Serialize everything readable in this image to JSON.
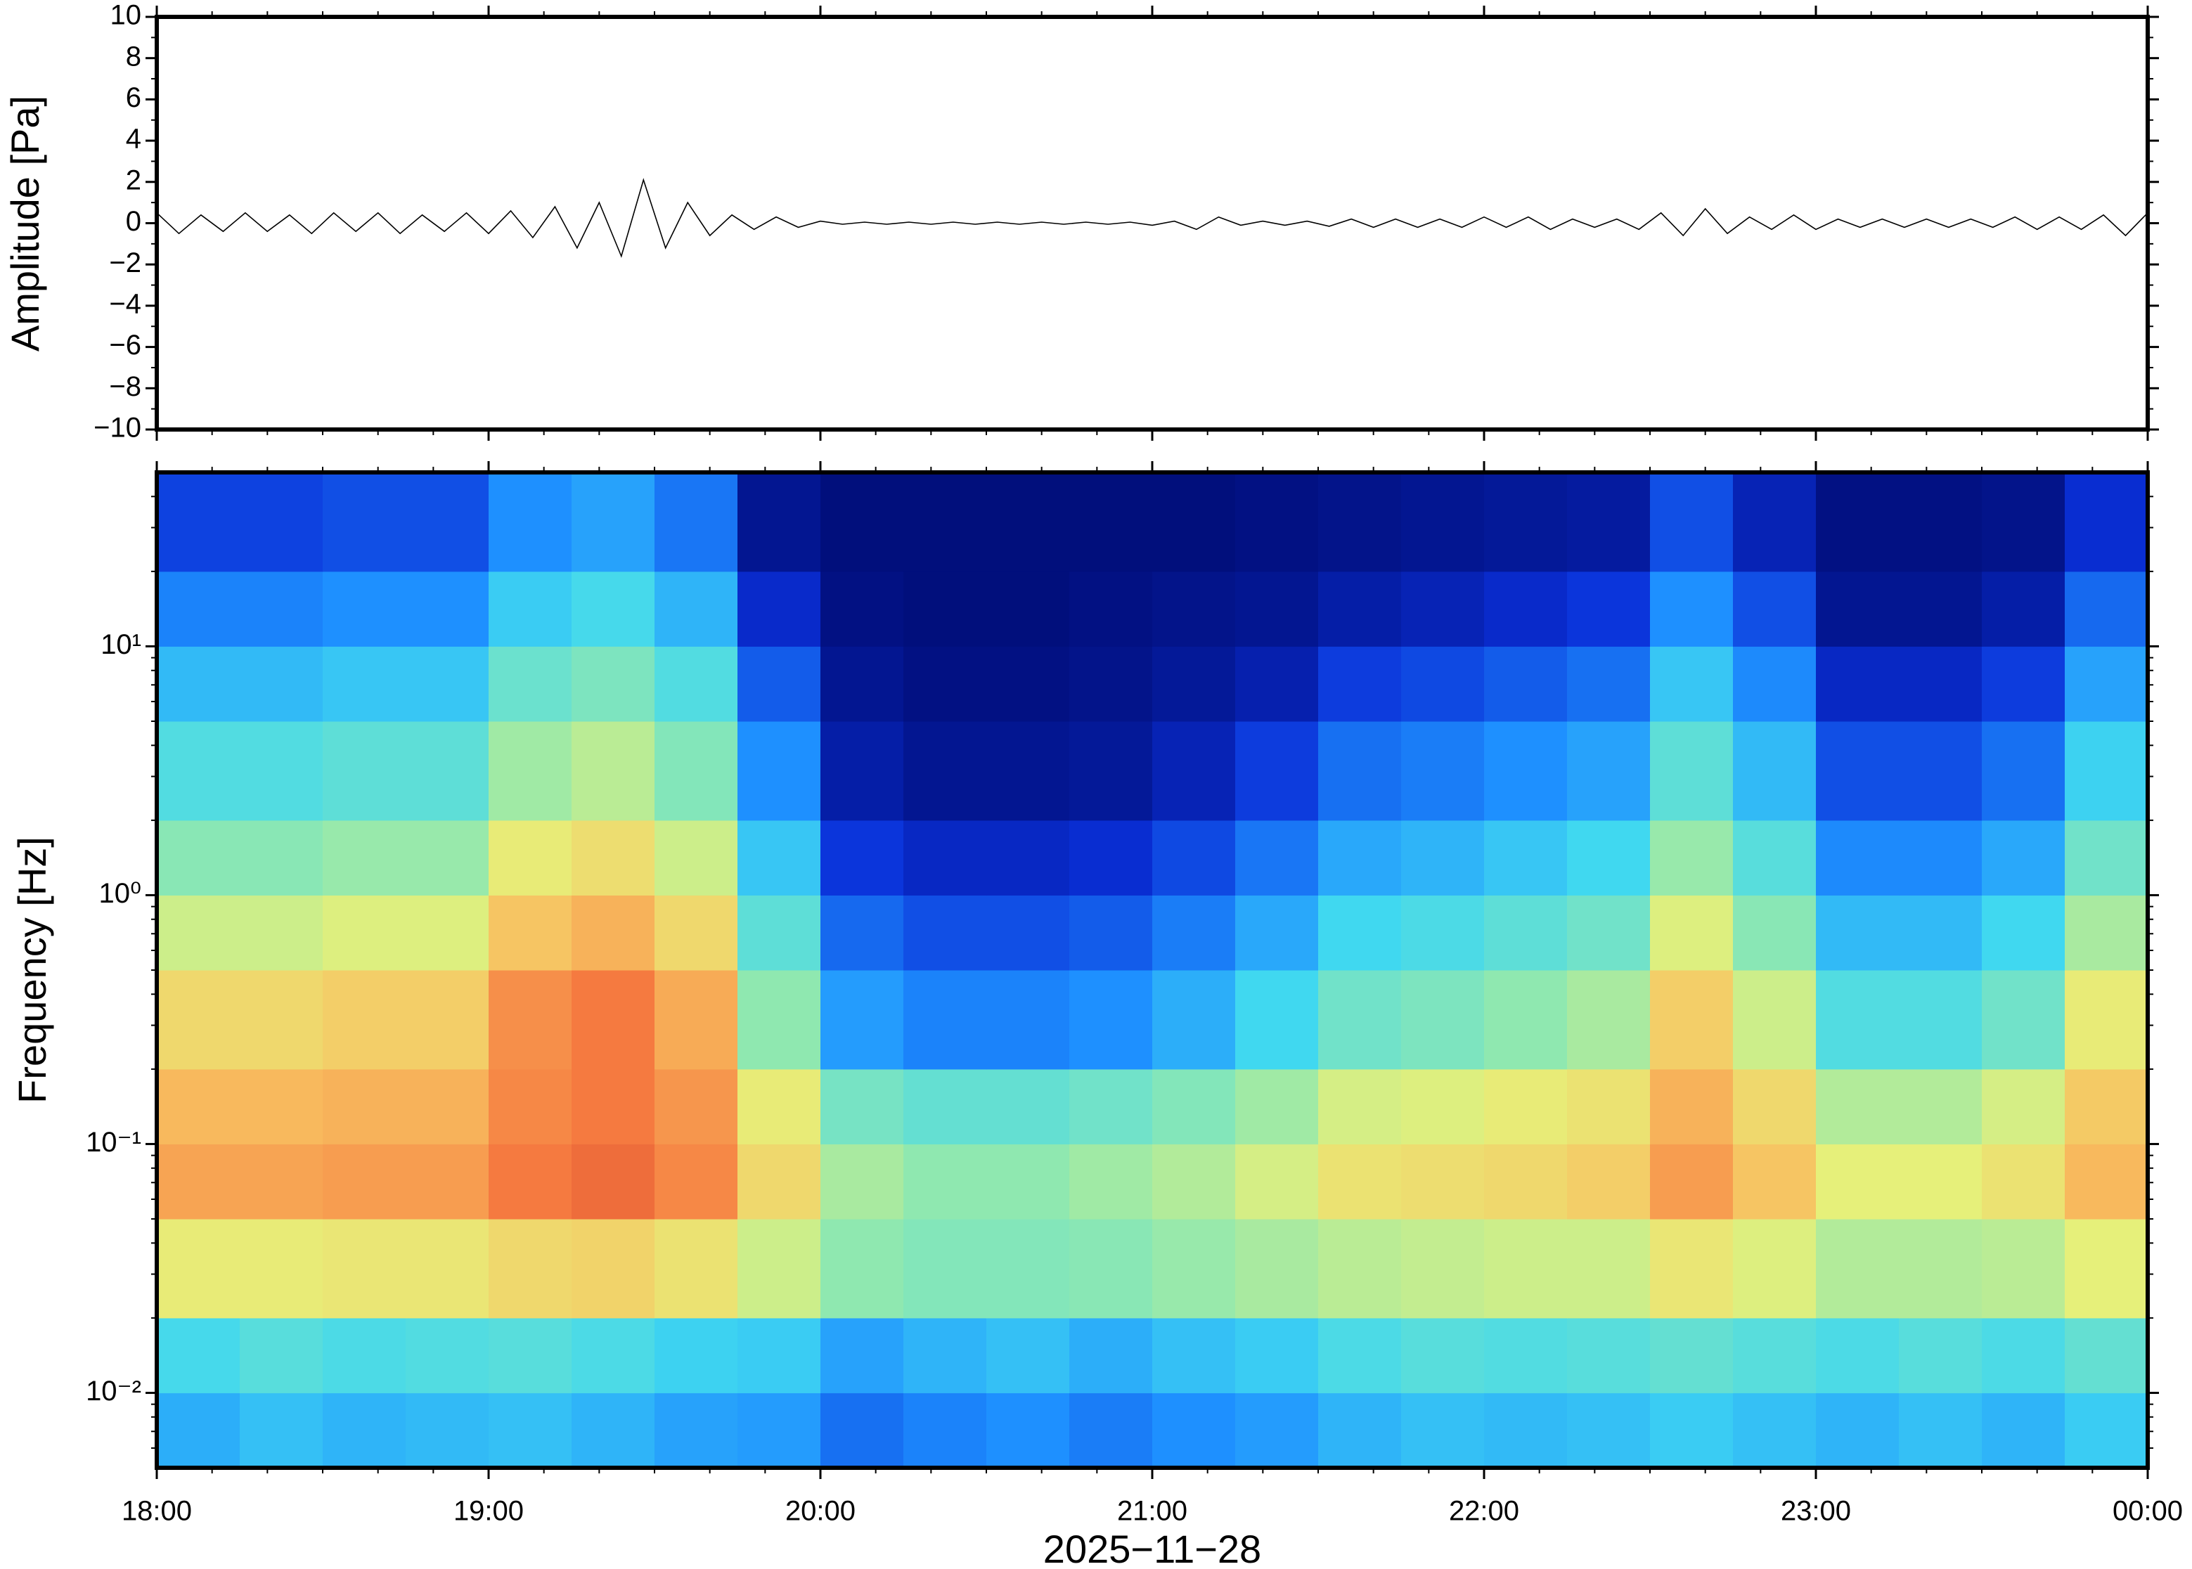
{
  "chart_data": [
    {
      "type": "line",
      "ylabel": "Amplitude [Pa]",
      "color": "#000000",
      "x": [
        "18:00",
        "18:04",
        "18:08",
        "18:12",
        "18:16",
        "18:20",
        "18:24",
        "18:28",
        "18:32",
        "18:36",
        "18:40",
        "18:44",
        "18:48",
        "18:52",
        "18:56",
        "19:00",
        "19:04",
        "19:08",
        "19:12",
        "19:16",
        "19:20",
        "19:24",
        "19:28",
        "19:32",
        "19:36",
        "19:40",
        "19:44",
        "19:48",
        "19:52",
        "19:56",
        "20:00",
        "20:04",
        "20:08",
        "20:12",
        "20:16",
        "20:20",
        "20:24",
        "20:28",
        "20:32",
        "20:36",
        "20:40",
        "20:44",
        "20:48",
        "20:52",
        "20:56",
        "21:00",
        "21:04",
        "21:08",
        "21:12",
        "21:16",
        "21:20",
        "21:24",
        "21:28",
        "21:32",
        "21:36",
        "21:40",
        "21:44",
        "21:48",
        "21:52",
        "21:56",
        "22:00",
        "22:04",
        "22:08",
        "22:12",
        "22:16",
        "22:20",
        "22:24",
        "22:28",
        "22:32",
        "22:36",
        "22:40",
        "22:44",
        "22:48",
        "22:52",
        "22:56",
        "23:00",
        "23:04",
        "23:08",
        "23:12",
        "23:16",
        "23:20",
        "23:24",
        "23:28",
        "23:32",
        "23:36",
        "23:40",
        "23:44",
        "23:48",
        "23:52",
        "23:56",
        "00:00"
      ],
      "values": [
        0.5,
        -0.5,
        0.4,
        -0.4,
        0.5,
        -0.4,
        0.4,
        -0.5,
        0.5,
        -0.4,
        0.5,
        -0.5,
        0.4,
        -0.4,
        0.5,
        -0.5,
        0.6,
        -0.7,
        0.8,
        -1.2,
        1.0,
        -1.6,
        2.1,
        -1.2,
        1.0,
        -0.6,
        0.4,
        -0.3,
        0.3,
        -0.2,
        0.1,
        -0.05,
        0.05,
        -0.05,
        0.05,
        -0.05,
        0.05,
        -0.05,
        0.05,
        -0.05,
        0.05,
        -0.05,
        0.05,
        -0.05,
        0.05,
        -0.1,
        0.1,
        -0.3,
        0.3,
        -0.1,
        0.1,
        -0.1,
        0.1,
        -0.15,
        0.2,
        -0.2,
        0.2,
        -0.2,
        0.2,
        -0.2,
        0.3,
        -0.2,
        0.3,
        -0.3,
        0.2,
        -0.2,
        0.2,
        -0.3,
        0.5,
        -0.6,
        0.7,
        -0.5,
        0.3,
        -0.3,
        0.4,
        -0.3,
        0.2,
        -0.2,
        0.2,
        -0.2,
        0.2,
        -0.2,
        0.2,
        -0.2,
        0.3,
        -0.3,
        0.3,
        -0.3,
        0.4,
        -0.6,
        0.5
      ],
      "xlim": [
        "18:00",
        "00:00"
      ],
      "ylim": [
        -10,
        10
      ],
      "yticks": [
        {
          "value": -10,
          "label": "−10"
        },
        {
          "value": -8,
          "label": "−8"
        },
        {
          "value": -6,
          "label": "−6"
        },
        {
          "value": -4,
          "label": "−4"
        },
        {
          "value": -2,
          "label": "−2"
        },
        0,
        2,
        4,
        6,
        8,
        10
      ]
    },
    {
      "type": "heatmap",
      "ylabel": "Frequency [Hz]",
      "xlabel": "2025−11−28",
      "log": true,
      "bins": [
        "18:00",
        "18:15",
        "18:30",
        "18:45",
        "19:00",
        "19:15",
        "19:30",
        "19:45",
        "20:00",
        "20:15",
        "20:30",
        "20:45",
        "21:00",
        "21:15",
        "21:30",
        "21:45",
        "22:00",
        "22:15",
        "22:30",
        "22:45",
        "23:00",
        "23:15",
        "23:30",
        "23:45",
        "00:00"
      ],
      "ybins": [
        0.005,
        0.01,
        0.02,
        0.05,
        0.1,
        0.2,
        0.5,
        1,
        2,
        5,
        10,
        20,
        50
      ],
      "values": [
        [
          0.35,
          0.38,
          0.36,
          0.37,
          0.38,
          0.36,
          0.33,
          0.32,
          0.25,
          0.28,
          0.3,
          0.27,
          0.3,
          0.32,
          0.36,
          0.38,
          0.37,
          0.38,
          0.4,
          0.38,
          0.36,
          0.38,
          0.36,
          0.4
        ],
        [
          0.43,
          0.46,
          0.44,
          0.45,
          0.46,
          0.44,
          0.41,
          0.4,
          0.33,
          0.36,
          0.38,
          0.35,
          0.38,
          0.4,
          0.44,
          0.46,
          0.45,
          0.46,
          0.48,
          0.46,
          0.44,
          0.46,
          0.44,
          0.48
        ],
        [
          0.66,
          0.66,
          0.67,
          0.67,
          0.7,
          0.71,
          0.68,
          0.62,
          0.55,
          0.53,
          0.53,
          0.54,
          0.56,
          0.58,
          0.6,
          0.61,
          0.62,
          0.62,
          0.67,
          0.64,
          0.59,
          0.59,
          0.6,
          0.65
        ],
        [
          0.79,
          0.79,
          0.8,
          0.8,
          0.85,
          0.87,
          0.83,
          0.7,
          0.58,
          0.55,
          0.55,
          0.57,
          0.59,
          0.63,
          0.68,
          0.69,
          0.7,
          0.72,
          0.8,
          0.74,
          0.65,
          0.65,
          0.68,
          0.76
        ],
        [
          0.76,
          0.76,
          0.77,
          0.77,
          0.83,
          0.85,
          0.81,
          0.66,
          0.51,
          0.48,
          0.48,
          0.5,
          0.53,
          0.57,
          0.63,
          0.64,
          0.66,
          0.68,
          0.77,
          0.7,
          0.59,
          0.59,
          0.63,
          0.73
        ],
        [
          0.7,
          0.7,
          0.72,
          0.72,
          0.82,
          0.85,
          0.78,
          0.55,
          0.32,
          0.28,
          0.28,
          0.3,
          0.35,
          0.42,
          0.5,
          0.52,
          0.55,
          0.58,
          0.72,
          0.62,
          0.45,
          0.45,
          0.5,
          0.66
        ],
        [
          0.62,
          0.62,
          0.64,
          0.64,
          0.74,
          0.77,
          0.7,
          0.47,
          0.24,
          0.2,
          0.2,
          0.22,
          0.27,
          0.34,
          0.42,
          0.44,
          0.47,
          0.5,
          0.64,
          0.54,
          0.37,
          0.37,
          0.42,
          0.58
        ],
        [
          0.54,
          0.54,
          0.56,
          0.56,
          0.66,
          0.69,
          0.62,
          0.39,
          0.16,
          0.12,
          0.12,
          0.14,
          0.19,
          0.26,
          0.34,
          0.36,
          0.39,
          0.42,
          0.56,
          0.46,
          0.29,
          0.29,
          0.34,
          0.5
        ],
        [
          0.45,
          0.45,
          0.47,
          0.47,
          0.57,
          0.6,
          0.53,
          0.3,
          0.08,
          0.05,
          0.05,
          0.06,
          0.1,
          0.17,
          0.25,
          0.27,
          0.3,
          0.33,
          0.47,
          0.37,
          0.2,
          0.2,
          0.25,
          0.41
        ],
        [
          0.37,
          0.37,
          0.39,
          0.39,
          0.49,
          0.52,
          0.45,
          0.22,
          0.05,
          0.03,
          0.03,
          0.04,
          0.06,
          0.09,
          0.17,
          0.19,
          0.22,
          0.25,
          0.39,
          0.29,
          0.12,
          0.12,
          0.17,
          0.33
        ],
        [
          0.28,
          0.28,
          0.3,
          0.3,
          0.4,
          0.43,
          0.36,
          0.13,
          0.03,
          0.02,
          0.02,
          0.03,
          0.04,
          0.05,
          0.08,
          0.1,
          0.13,
          0.16,
          0.3,
          0.2,
          0.05,
          0.05,
          0.08,
          0.24
        ],
        [
          0.18,
          0.18,
          0.2,
          0.2,
          0.3,
          0.33,
          0.26,
          0.05,
          0.02,
          0.02,
          0.02,
          0.02,
          0.02,
          0.03,
          0.04,
          0.05,
          0.06,
          0.07,
          0.2,
          0.1,
          0.03,
          0.03,
          0.04,
          0.14
        ]
      ],
      "colorscale": [
        [
          0,
          "#000a6e"
        ],
        [
          0.15,
          "#0a2fd8"
        ],
        [
          0.3,
          "#1e90ff"
        ],
        [
          0.42,
          "#40d8f0"
        ],
        [
          0.55,
          "#8fe8b0"
        ],
        [
          0.65,
          "#e6f07a"
        ],
        [
          0.75,
          "#f8c060"
        ],
        [
          0.85,
          "#f57a40"
        ],
        [
          1,
          "#c01818"
        ]
      ],
      "xlim": [
        "18:00",
        "00:00"
      ],
      "xticks": [
        "18:00",
        "19:00",
        "20:00",
        "21:00",
        "22:00",
        "23:00",
        "00:00"
      ],
      "ylim": [
        0.005,
        50
      ],
      "yticks": [
        {
          "value": 0.01,
          "label": "10⁻²"
        },
        {
          "value": 0.1,
          "label": "10⁻¹"
        },
        {
          "value": 1,
          "label": "10⁰"
        },
        {
          "value": 10,
          "label": "10¹"
        }
      ]
    }
  ]
}
